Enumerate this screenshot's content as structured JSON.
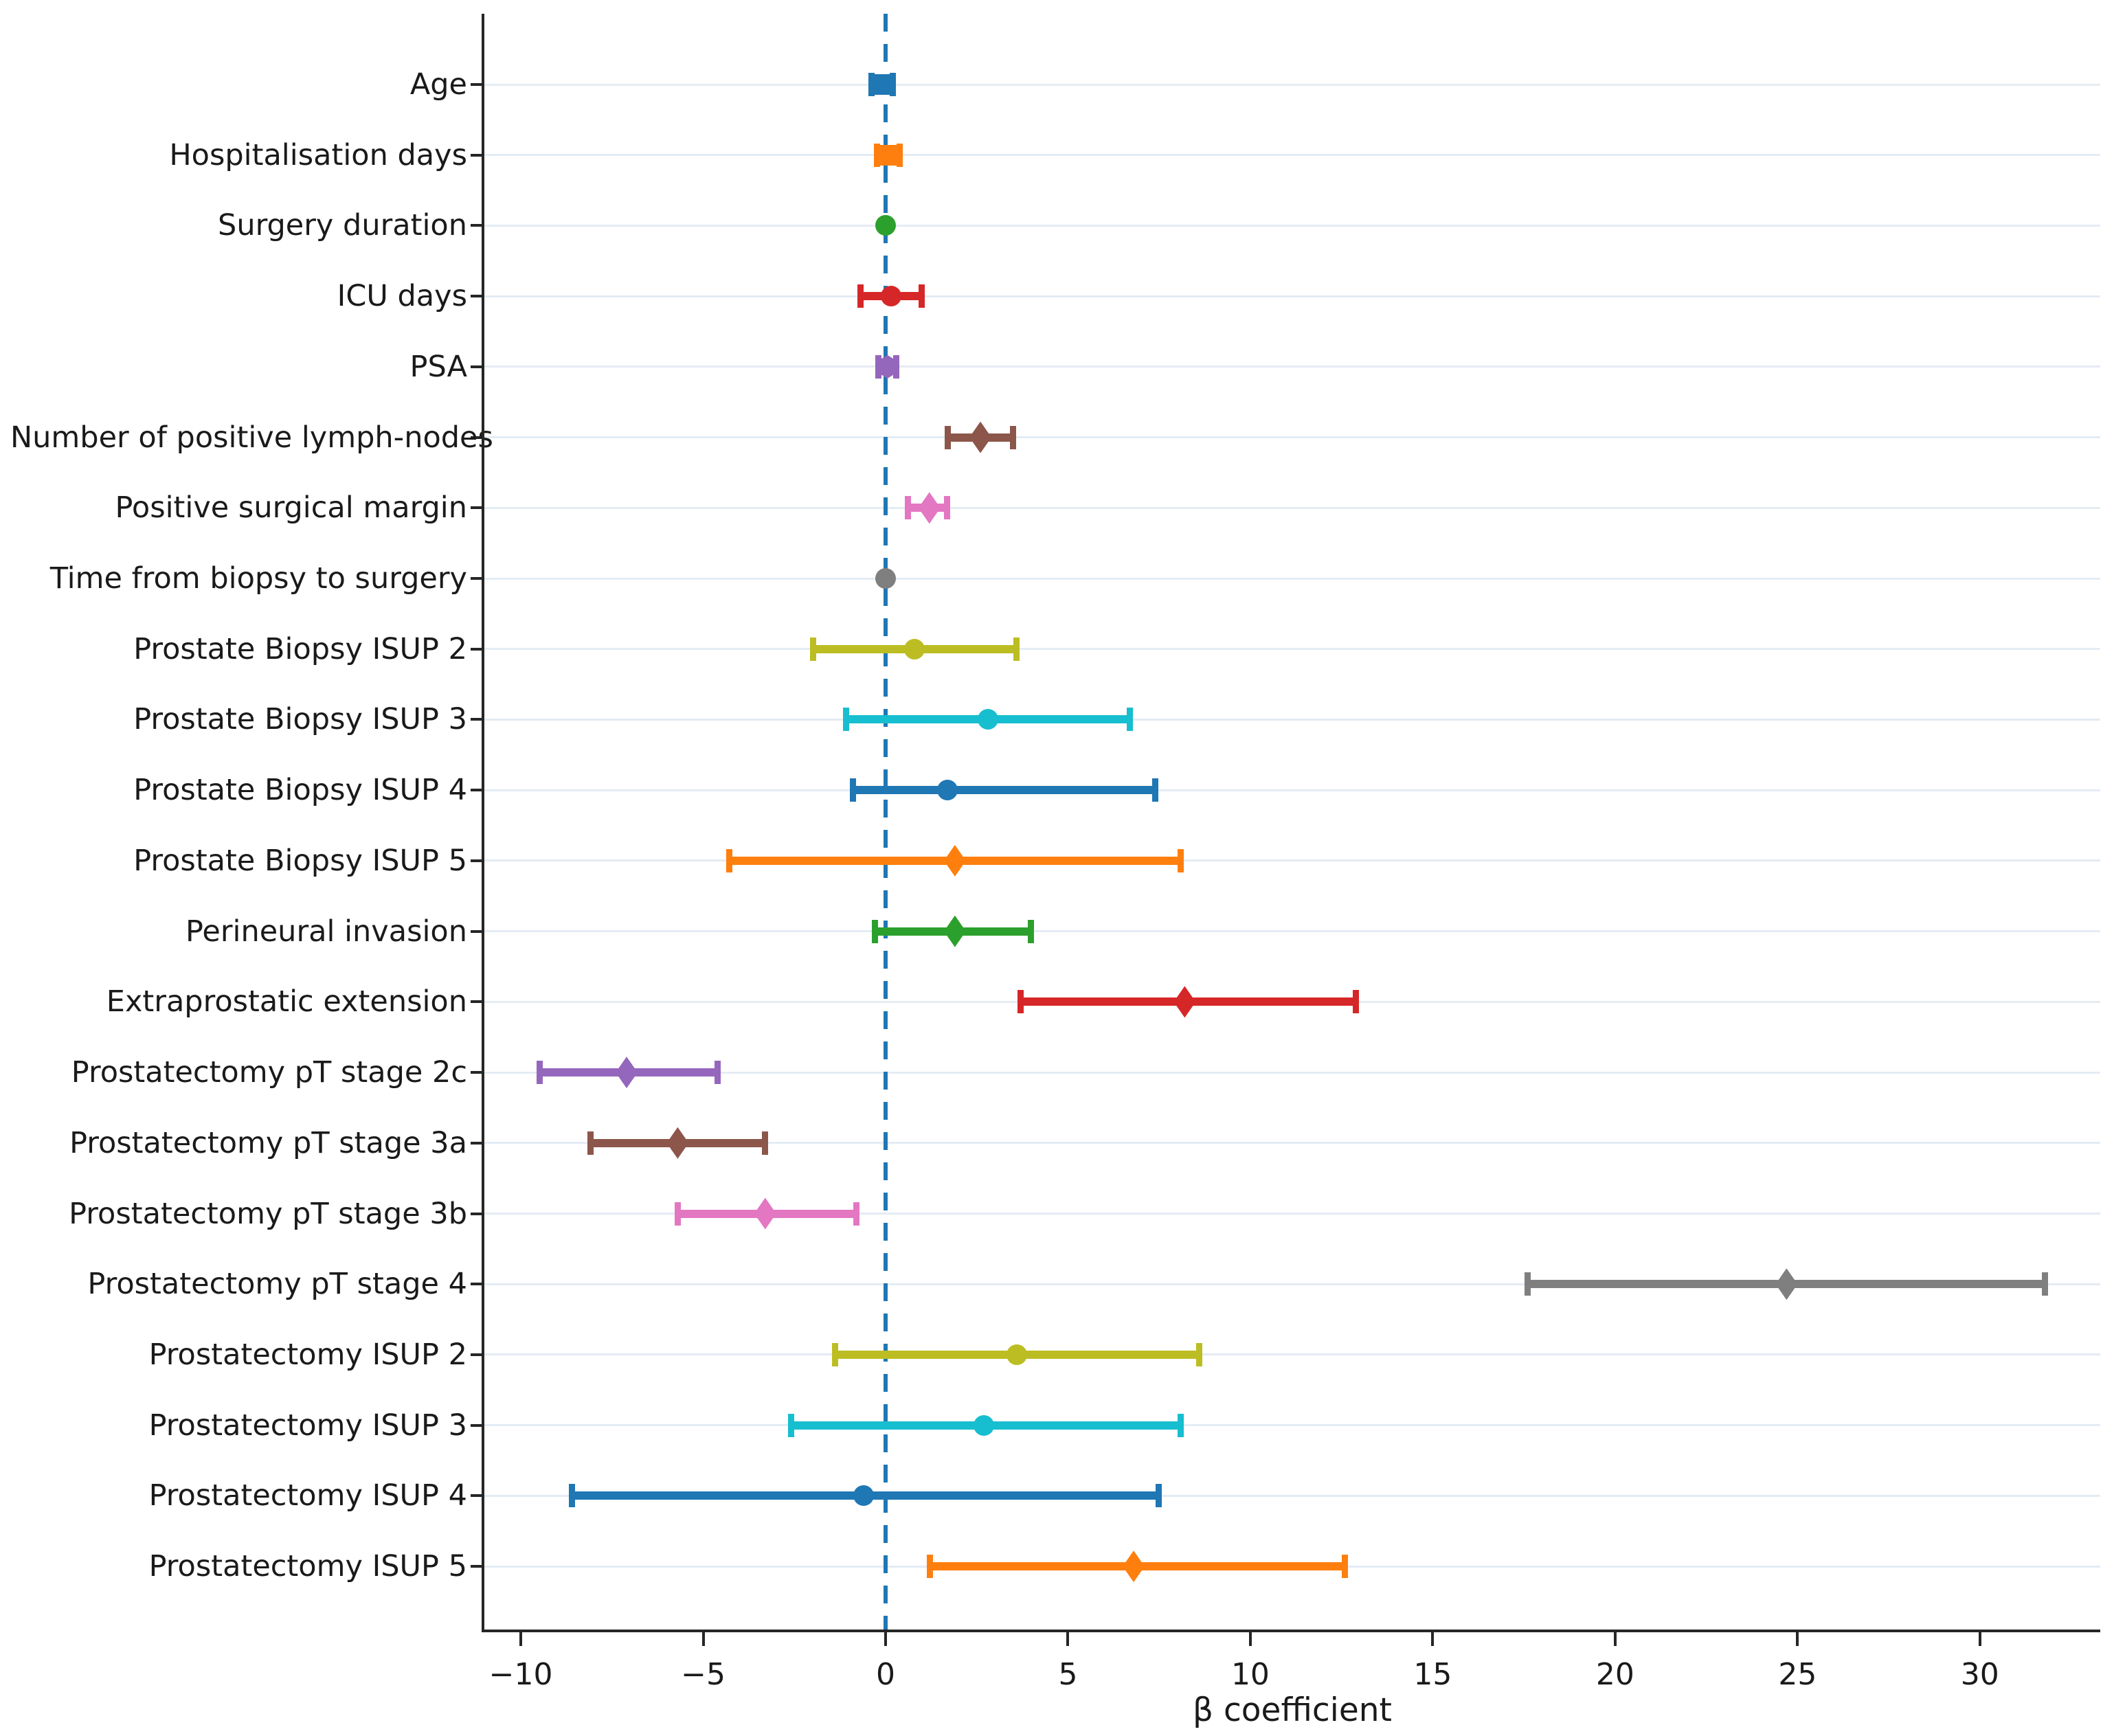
{
  "chart_data": {
    "type": "scatter",
    "subtype": "forest-plot",
    "title": "",
    "xlabel": "β coefficient",
    "ylabel": "",
    "xlim": [
      -11,
      33.3
    ],
    "grid": "horizontal",
    "legend": "none",
    "zero_line": {
      "x": 0,
      "style": "dashed",
      "color": "#1f77b4"
    },
    "grid_color": "#e4ecf4",
    "axis_color": "#262626",
    "xticks": [
      {
        "value": -10,
        "label": "−10"
      },
      {
        "value": -5,
        "label": "−5"
      },
      {
        "value": 0,
        "label": "0"
      },
      {
        "value": 5,
        "label": "5"
      },
      {
        "value": 10,
        "label": "10"
      },
      {
        "value": 15,
        "label": "15"
      },
      {
        "value": 20,
        "label": "20"
      },
      {
        "value": 25,
        "label": "25"
      },
      {
        "value": 30,
        "label": "30"
      }
    ],
    "rows": [
      {
        "label": "Age",
        "beta": -0.1,
        "ci_low": -0.4,
        "ci_high": 0.2,
        "color": "#1f77b4",
        "marker": "square"
      },
      {
        "label": "Hospitalisation days",
        "beta": 0.1,
        "ci_low": -0.25,
        "ci_high": 0.4,
        "color": "#ff7f0e",
        "marker": "square"
      },
      {
        "label": "Surgery duration",
        "beta": 0.0,
        "ci_low": 0.0,
        "ci_high": 0.0,
        "color": "#2ca02c",
        "marker": "circle"
      },
      {
        "label": "ICU days",
        "beta": 0.15,
        "ci_low": -0.7,
        "ci_high": 1.0,
        "color": "#d62728",
        "marker": "circle"
      },
      {
        "label": "PSA",
        "beta": 0.05,
        "ci_low": -0.2,
        "ci_high": 0.3,
        "color": "#9467bd",
        "marker": "hexagon"
      },
      {
        "label": "Number of positive lymph-nodes",
        "beta": 2.6,
        "ci_low": 1.7,
        "ci_high": 3.5,
        "color": "#8c564b",
        "marker": "diamond"
      },
      {
        "label": "Positive surgical margin",
        "beta": 1.2,
        "ci_low": 0.6,
        "ci_high": 1.7,
        "color": "#e377c2",
        "marker": "diamond"
      },
      {
        "label": "Time from biopsy to surgery",
        "beta": 0.0,
        "ci_low": 0.0,
        "ci_high": 0.0,
        "color": "#7f7f7f",
        "marker": "circle"
      },
      {
        "label": "Prostate Biopsy ISUP 2",
        "beta": 0.8,
        "ci_low": -2.0,
        "ci_high": 3.6,
        "color": "#bcbd22",
        "marker": "circle"
      },
      {
        "label": "Prostate Biopsy ISUP 3",
        "beta": 2.8,
        "ci_low": -1.1,
        "ci_high": 6.7,
        "color": "#17becf",
        "marker": "circle"
      },
      {
        "label": "Prostate Biopsy ISUP 4",
        "beta": 1.7,
        "ci_low": -0.9,
        "ci_high": 7.4,
        "color": "#1f77b4",
        "marker": "circle"
      },
      {
        "label": "Prostate Biopsy ISUP 5",
        "beta": 1.9,
        "ci_low": -4.3,
        "ci_high": 8.1,
        "color": "#ff7f0e",
        "marker": "diamond"
      },
      {
        "label": "Perineural invasion",
        "beta": 1.9,
        "ci_low": -0.3,
        "ci_high": 4.0,
        "color": "#2ca02c",
        "marker": "diamond"
      },
      {
        "label": "Extraprostatic extension",
        "beta": 8.2,
        "ci_low": 3.7,
        "ci_high": 12.9,
        "color": "#d62728",
        "marker": "diamond"
      },
      {
        "label": "Prostatectomy pT stage 2c",
        "beta": -7.1,
        "ci_low": -9.5,
        "ci_high": -4.6,
        "color": "#9467bd",
        "marker": "diamond"
      },
      {
        "label": "Prostatectomy pT stage 3a",
        "beta": -5.7,
        "ci_low": -8.1,
        "ci_high": -3.3,
        "color": "#8c564b",
        "marker": "diamond"
      },
      {
        "label": "Prostatectomy pT stage 3b",
        "beta": -3.3,
        "ci_low": -5.7,
        "ci_high": -0.8,
        "color": "#e377c2",
        "marker": "diamond"
      },
      {
        "label": "Prostatectomy pT stage 4",
        "beta": 24.7,
        "ci_low": 17.6,
        "ci_high": 31.8,
        "color": "#7f7f7f",
        "marker": "diamond"
      },
      {
        "label": "Prostatectomy ISUP 2",
        "beta": 3.6,
        "ci_low": -1.4,
        "ci_high": 8.6,
        "color": "#bcbd22",
        "marker": "circle"
      },
      {
        "label": "Prostatectomy ISUP 3",
        "beta": 2.7,
        "ci_low": -2.6,
        "ci_high": 8.1,
        "color": "#17becf",
        "marker": "circle"
      },
      {
        "label": "Prostatectomy ISUP 4",
        "beta": -0.6,
        "ci_low": -8.6,
        "ci_high": 7.5,
        "color": "#1f77b4",
        "marker": "circle"
      },
      {
        "label": "Prostatectomy ISUP 5",
        "beta": 6.8,
        "ci_low": 1.2,
        "ci_high": 12.6,
        "color": "#ff7f0e",
        "marker": "diamond"
      }
    ]
  }
}
